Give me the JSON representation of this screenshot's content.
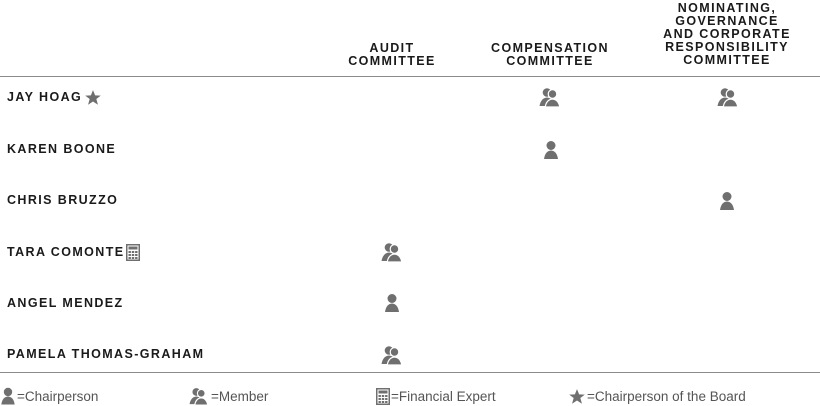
{
  "header": {
    "columns": [
      {
        "key": "audit",
        "lines": [
          "AUDIT",
          "COMMITTEE"
        ]
      },
      {
        "key": "compensation",
        "lines": [
          "COMPENSATION",
          "COMMITTEE"
        ]
      },
      {
        "key": "nominating",
        "lines": [
          "NOMINATING,",
          "GOVERNANCE",
          "AND CORPORATE",
          "RESPONSIBILITY",
          "COMMITTEE"
        ]
      }
    ]
  },
  "rows": [
    {
      "name": "JAY HOAG",
      "badge": "star-icon",
      "audit": "",
      "compensation": "member",
      "nominating": "member"
    },
    {
      "name": "KAREN BOONE",
      "badge": "",
      "audit": "",
      "compensation": "chairperson",
      "nominating": ""
    },
    {
      "name": "CHRIS BRUZZO",
      "badge": "",
      "audit": "",
      "compensation": "",
      "nominating": "chairperson"
    },
    {
      "name": "TARA COMONTE",
      "badge": "calculator-icon",
      "audit": "member",
      "compensation": "",
      "nominating": ""
    },
    {
      "name": "ANGEL MENDEZ",
      "badge": "",
      "audit": "chairperson",
      "compensation": "",
      "nominating": ""
    },
    {
      "name": "PAMELA THOMAS-GRAHAM",
      "badge": "",
      "audit": "member",
      "compensation": "",
      "nominating": ""
    }
  ],
  "legend": {
    "chairperson": "=Chairperson",
    "member": "=Member",
    "financial_expert": "=Financial Expert",
    "board_chair": "=Chairperson of the Board"
  },
  "colors": {
    "icon": "#6f6f6f",
    "rule": "#8a8a8a",
    "text": "#1a1a1a",
    "legend_text": "#555555"
  }
}
